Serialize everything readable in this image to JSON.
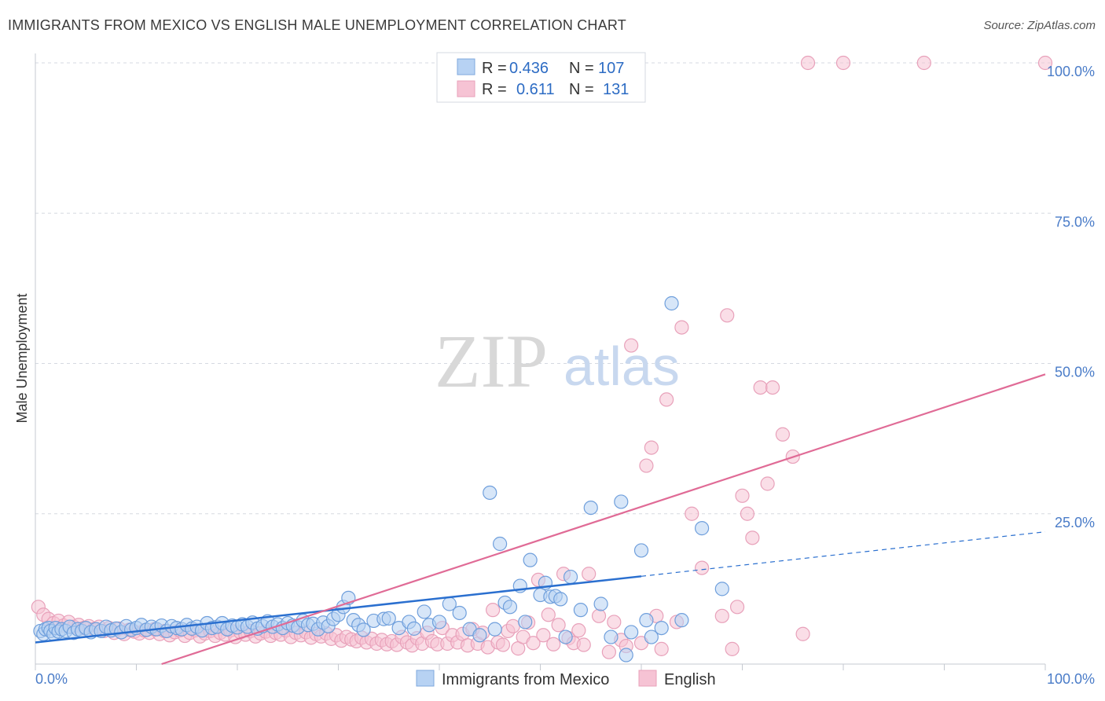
{
  "title": "IMMIGRANTS FROM MEXICO VS ENGLISH MALE UNEMPLOYMENT CORRELATION CHART",
  "source": "Source: ZipAtlas.com",
  "watermark": {
    "zip": "ZIP",
    "atlas": "atlas"
  },
  "colors": {
    "blue": "#2a6fcf",
    "blue_fill": "#b7d2f3",
    "pink": "#e06b96",
    "pink_fill": "#f6c3d4",
    "grid": "#d5d9e0",
    "tick": "#4a7cc8"
  },
  "legend": {
    "rows": [
      {
        "r_label": "R =",
        "r_value": "0.436",
        "n_label": "N =",
        "n_value": "107"
      },
      {
        "r_label": "R =",
        "r_value": "0.611",
        "n_label": "N =",
        "n_value": "131"
      }
    ]
  },
  "chart_data": {
    "type": "scatter",
    "title": "IMMIGRANTS FROM MEXICO VS ENGLISH MALE UNEMPLOYMENT CORRELATION CHART",
    "xlabel": "",
    "ylabel": "Male Unemployment",
    "xlim": [
      0,
      100
    ],
    "ylim": [
      0,
      100
    ],
    "x_tick_labels": [
      "0.0%",
      "100.0%"
    ],
    "y_tick_labels": [
      "25.0%",
      "50.0%",
      "75.0%",
      "100.0%"
    ],
    "y_ticks": [
      25,
      50,
      75,
      100
    ],
    "grid": true,
    "legend_position": "top-center",
    "series": [
      {
        "name": "Immigrants from Mexico",
        "color": "#2a6fcf",
        "trend": {
          "x": [
            0,
            60
          ],
          "y": [
            3.6,
            14.6
          ],
          "dashed_to": [
            100,
            22
          ]
        },
        "points": [
          [
            0.5,
            5.5
          ],
          [
            0.8,
            5
          ],
          [
            1,
            5.8
          ],
          [
            1.3,
            6
          ],
          [
            1.5,
            5.5
          ],
          [
            1.8,
            5
          ],
          [
            2,
            6
          ],
          [
            2.3,
            5.4
          ],
          [
            2.6,
            5.8
          ],
          [
            3,
            5.5
          ],
          [
            3.4,
            6.2
          ],
          [
            3.8,
            5.2
          ],
          [
            4.2,
            5.8
          ],
          [
            4.6,
            5.5
          ],
          [
            5,
            6
          ],
          [
            5.5,
            5.3
          ],
          [
            6,
            5.8
          ],
          [
            6.5,
            5.5
          ],
          [
            7,
            6.2
          ],
          [
            7.5,
            5.6
          ],
          [
            8,
            5.9
          ],
          [
            8.5,
            5.3
          ],
          [
            9,
            6.3
          ],
          [
            9.5,
            5.7
          ],
          [
            10,
            6
          ],
          [
            10.5,
            6.5
          ],
          [
            11,
            5.7
          ],
          [
            11.5,
            6.2
          ],
          [
            12,
            5.8
          ],
          [
            12.5,
            6.4
          ],
          [
            13,
            5.5
          ],
          [
            13.5,
            6.3
          ],
          [
            14,
            6
          ],
          [
            14.5,
            5.8
          ],
          [
            15,
            6.5
          ],
          [
            15.5,
            5.9
          ],
          [
            16,
            6.2
          ],
          [
            16.5,
            5.6
          ],
          [
            17,
            6.8
          ],
          [
            17.5,
            6
          ],
          [
            18,
            6.2
          ],
          [
            18.5,
            6.8
          ],
          [
            19,
            5.8
          ],
          [
            19.5,
            6.4
          ],
          [
            20,
            6.1
          ],
          [
            20.5,
            6.6
          ],
          [
            21,
            6.2
          ],
          [
            21.5,
            6.9
          ],
          [
            22,
            5.9
          ],
          [
            22.5,
            6.3
          ],
          [
            23,
            7.1
          ],
          [
            23.5,
            6.2
          ],
          [
            24,
            6.6
          ],
          [
            24.5,
            6
          ],
          [
            25,
            6.8
          ],
          [
            25.5,
            6.4
          ],
          [
            26,
            6.1
          ],
          [
            26.5,
            7.2
          ],
          [
            27,
            6.5
          ],
          [
            27.5,
            6.7
          ],
          [
            28,
            5.8
          ],
          [
            28.5,
            6.9
          ],
          [
            29,
            6.3
          ],
          [
            29.5,
            7.5
          ],
          [
            30,
            8.2
          ],
          [
            30.5,
            9.5
          ],
          [
            31,
            11
          ],
          [
            31.5,
            7.3
          ],
          [
            32,
            6.5
          ],
          [
            32.5,
            5.7
          ],
          [
            33.5,
            7.2
          ],
          [
            34.5,
            7.5
          ],
          [
            35,
            7.6
          ],
          [
            36,
            6
          ],
          [
            37,
            7
          ],
          [
            37.5,
            5.9
          ],
          [
            38.5,
            8.7
          ],
          [
            39,
            6.5
          ],
          [
            40,
            7
          ],
          [
            41,
            10
          ],
          [
            42,
            8.5
          ],
          [
            43,
            5.8
          ],
          [
            44,
            4.8
          ],
          [
            45,
            28.5
          ],
          [
            45.5,
            5.8
          ],
          [
            46,
            20
          ],
          [
            46.5,
            10.2
          ],
          [
            47,
            9.5
          ],
          [
            48,
            13
          ],
          [
            48.5,
            7
          ],
          [
            49,
            17.3
          ],
          [
            50,
            11.5
          ],
          [
            50.5,
            13.5
          ],
          [
            51,
            11.2
          ],
          [
            51.5,
            11.3
          ],
          [
            52,
            10.8
          ],
          [
            52.5,
            4.5
          ],
          [
            53,
            14.5
          ],
          [
            54,
            9
          ],
          [
            55,
            26
          ],
          [
            56,
            10
          ],
          [
            57,
            4.5
          ],
          [
            58,
            27
          ],
          [
            58.5,
            1.5
          ],
          [
            59,
            5.3
          ],
          [
            60,
            18.9
          ],
          [
            60.5,
            7.3
          ],
          [
            61,
            4.5
          ],
          [
            62,
            6
          ],
          [
            63,
            60
          ],
          [
            64,
            7.3
          ],
          [
            66,
            22.6
          ],
          [
            68,
            12.5
          ]
        ]
      },
      {
        "name": "English",
        "color": "#e06b96",
        "trend": {
          "x": [
            12.5,
            100
          ],
          "y": [
            0,
            48.2
          ]
        },
        "points": [
          [
            0.3,
            9.5
          ],
          [
            0.8,
            8.2
          ],
          [
            1.3,
            7.5
          ],
          [
            1.8,
            6.8
          ],
          [
            2.3,
            7.2
          ],
          [
            2.8,
            6.4
          ],
          [
            3.3,
            7
          ],
          [
            3.8,
            6.2
          ],
          [
            4.3,
            6.5
          ],
          [
            4.8,
            6
          ],
          [
            5.3,
            6.3
          ],
          [
            5.8,
            5.8
          ],
          [
            6.3,
            6.2
          ],
          [
            6.8,
            5.5
          ],
          [
            7.3,
            6
          ],
          [
            7.8,
            5.2
          ],
          [
            8.3,
            5.9
          ],
          [
            8.8,
            5
          ],
          [
            9.3,
            5.7
          ],
          [
            9.8,
            5.4
          ],
          [
            10.3,
            5.1
          ],
          [
            10.8,
            5.6
          ],
          [
            11.3,
            5.2
          ],
          [
            11.8,
            5.8
          ],
          [
            12.3,
            5
          ],
          [
            12.8,
            5.5
          ],
          [
            13.3,
            4.8
          ],
          [
            13.8,
            5.3
          ],
          [
            14.3,
            5.6
          ],
          [
            14.8,
            4.7
          ],
          [
            15.3,
            5.2
          ],
          [
            15.8,
            5.6
          ],
          [
            16.3,
            4.6
          ],
          [
            16.8,
            5.1
          ],
          [
            17.3,
            5.5
          ],
          [
            17.8,
            4.7
          ],
          [
            18.3,
            5.2
          ],
          [
            18.8,
            4.9
          ],
          [
            19.3,
            5.6
          ],
          [
            19.8,
            4.5
          ],
          [
            20.3,
            5.3
          ],
          [
            20.8,
            4.9
          ],
          [
            21.3,
            5.5
          ],
          [
            21.8,
            4.6
          ],
          [
            22.3,
            5.1
          ],
          [
            22.8,
            5.4
          ],
          [
            23.3,
            4.7
          ],
          [
            23.8,
            5.2
          ],
          [
            24.3,
            4.9
          ],
          [
            24.8,
            5.6
          ],
          [
            25.3,
            4.5
          ],
          [
            25.8,
            5.2
          ],
          [
            26.3,
            4.8
          ],
          [
            26.8,
            5.3
          ],
          [
            27.3,
            4.4
          ],
          [
            27.8,
            5
          ],
          [
            28.3,
            4.6
          ],
          [
            28.8,
            5.1
          ],
          [
            29.3,
            4.2
          ],
          [
            29.8,
            4.8
          ],
          [
            30.3,
            3.9
          ],
          [
            30.8,
            4.5
          ],
          [
            31.3,
            4.1
          ],
          [
            31.8,
            3.8
          ],
          [
            32.3,
            4.4
          ],
          [
            32.8,
            3.6
          ],
          [
            33.3,
            4.2
          ],
          [
            33.8,
            3.4
          ],
          [
            34.3,
            4
          ],
          [
            34.8,
            3.3
          ],
          [
            35.3,
            3.8
          ],
          [
            35.8,
            3.2
          ],
          [
            36.3,
            4.5
          ],
          [
            36.8,
            3.6
          ],
          [
            37.3,
            3.1
          ],
          [
            37.8,
            4.3
          ],
          [
            38.3,
            3.4
          ],
          [
            38.8,
            5.2
          ],
          [
            39.3,
            3.8
          ],
          [
            39.8,
            3.3
          ],
          [
            40.3,
            6
          ],
          [
            40.8,
            3.4
          ],
          [
            41.3,
            4.8
          ],
          [
            41.8,
            3.6
          ],
          [
            42.3,
            5
          ],
          [
            42.8,
            3.1
          ],
          [
            43.3,
            5.8
          ],
          [
            43.8,
            3.4
          ],
          [
            44.3,
            5.2
          ],
          [
            44.8,
            2.8
          ],
          [
            45.3,
            9
          ],
          [
            45.8,
            3.6
          ],
          [
            46.3,
            3.2
          ],
          [
            46.8,
            5.5
          ],
          [
            47.3,
            6.3
          ],
          [
            47.8,
            2.6
          ],
          [
            48.3,
            4.5
          ],
          [
            48.8,
            6.9
          ],
          [
            49.3,
            3.5
          ],
          [
            49.8,
            14
          ],
          [
            50.3,
            4.8
          ],
          [
            50.8,
            8.2
          ],
          [
            51.3,
            3.3
          ],
          [
            51.8,
            6.5
          ],
          [
            52.3,
            15
          ],
          [
            52.8,
            4.3
          ],
          [
            53.3,
            3.5
          ],
          [
            53.8,
            5.6
          ],
          [
            54.3,
            3.2
          ],
          [
            54.8,
            15
          ],
          [
            55.8,
            8
          ],
          [
            56.8,
            2
          ],
          [
            57.3,
            7
          ],
          [
            58,
            4
          ],
          [
            58.5,
            3
          ],
          [
            59,
            53
          ],
          [
            60,
            3.5
          ],
          [
            60.5,
            33
          ],
          [
            61,
            36
          ],
          [
            61.5,
            8
          ],
          [
            62,
            2.5
          ],
          [
            62.5,
            44
          ],
          [
            63.5,
            7
          ],
          [
            64,
            56
          ],
          [
            65,
            25
          ],
          [
            66,
            16
          ],
          [
            68,
            8
          ],
          [
            68.5,
            58
          ],
          [
            69,
            2.5
          ],
          [
            69.5,
            9.5
          ],
          [
            70,
            28
          ],
          [
            70.5,
            25
          ],
          [
            71,
            21
          ],
          [
            71.8,
            46
          ],
          [
            72.5,
            30
          ],
          [
            73,
            46
          ],
          [
            74,
            38.2
          ],
          [
            75,
            34.5
          ],
          [
            76,
            5
          ],
          [
            76.5,
            100
          ],
          [
            80,
            100
          ],
          [
            88,
            100
          ],
          [
            100,
            100
          ]
        ]
      }
    ]
  },
  "bottom_legend": [
    "Immigrants from Mexico",
    "English"
  ]
}
